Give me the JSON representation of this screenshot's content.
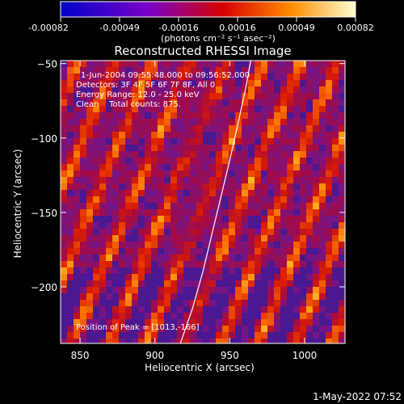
{
  "colorbar": {
    "ticks": [
      "-0.00082",
      "-0.00049",
      "-0.00016",
      "0.00016",
      "0.00049",
      "0.00082"
    ],
    "tick_values": [
      -0.00082,
      -0.00049,
      -0.00016,
      0.00016,
      0.00049,
      0.00082
    ],
    "units": "(photons cm⁻² s⁻¹ asec⁻²)",
    "range": [
      -0.00082,
      0.00082
    ],
    "colors": [
      "#0000c8",
      "#7a00c8",
      "#d80000",
      "#ff8c00",
      "#ffffd0"
    ]
  },
  "chart_data": {
    "type": "heatmap",
    "title": "Reconstructed RHESSI Image",
    "xlabel": "Heliocentric X (arcsec)",
    "ylabel": "Heliocentric Y (arcsec)",
    "xlim": [
      837,
      1027
    ],
    "ylim": [
      -238,
      -48
    ],
    "xticks": [
      850,
      900,
      950,
      1000
    ],
    "xtick_labels": [
      "850",
      "900",
      "950",
      "1000"
    ],
    "yticks": [
      -50,
      -100,
      -150,
      -200
    ],
    "ytick_labels": [
      "−50",
      "−100",
      "−150",
      "−200"
    ],
    "annotations": [
      "1-Jun-2004 09:55:48.000 to 09:56:52.000",
      "Detectors: 3F 4F 5F 6F 7F 8F, All 0",
      "Energy Range: 12.0 - 25.0 keV",
      "Clean    Total counts: 875."
    ],
    "peak_label": "Position of Peak = [1013,-166]",
    "peak": [
      1013,
      -166
    ],
    "limb_curve": [
      [
        917,
        -238
      ],
      [
        925,
        -215
      ],
      [
        932,
        -190
      ],
      [
        938,
        -165
      ],
      [
        944,
        -140
      ],
      [
        950,
        -115
      ],
      [
        956,
        -88
      ],
      [
        961,
        -65
      ],
      [
        964,
        -48
      ]
    ],
    "limb_color": "#ffffff",
    "grid": false
  },
  "footer": {
    "timestamp": "1-May-2022 07:52"
  }
}
